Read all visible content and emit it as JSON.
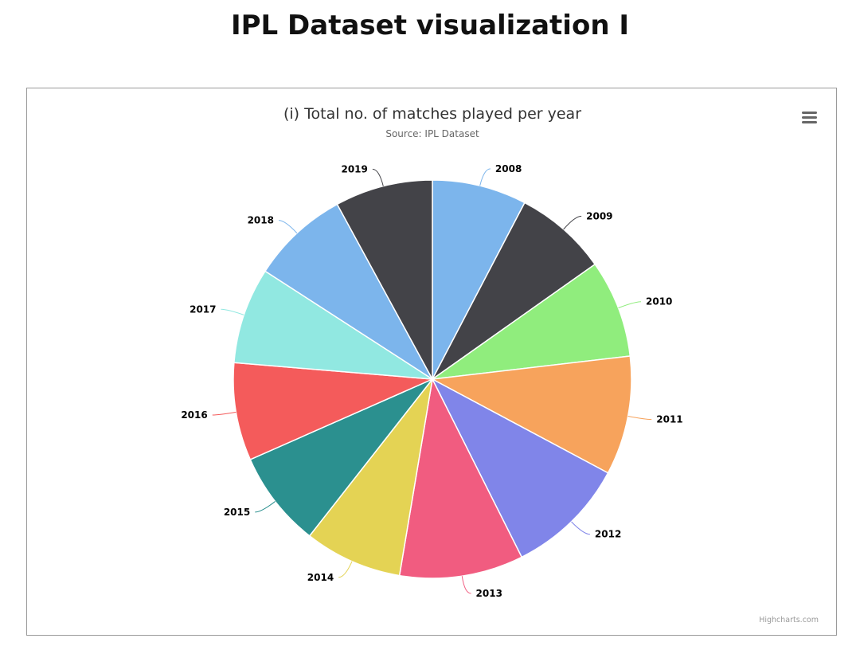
{
  "page": {
    "heading": "IPL Dataset visualization I"
  },
  "chart": {
    "menu_icon": "hamburger-menu-icon",
    "credits": "Highcharts.com"
  },
  "chart_data": {
    "type": "pie",
    "title": "(i) Total no. of matches played per year",
    "subtitle": "Source: IPL Dataset",
    "categories": [
      "2008",
      "2009",
      "2010",
      "2011",
      "2012",
      "2013",
      "2014",
      "2015",
      "2016",
      "2017",
      "2018",
      "2019"
    ],
    "values": [
      58,
      57,
      60,
      73,
      74,
      76,
      60,
      59,
      60,
      59,
      60,
      60
    ],
    "colors": [
      "#7cb5ec",
      "#434348",
      "#90ed7d",
      "#f7a35c",
      "#8085e9",
      "#f15c80",
      "#e4d354",
      "#2b908f",
      "#f45b5b",
      "#91e8e1",
      "#7cb5ec",
      "#434348"
    ]
  }
}
